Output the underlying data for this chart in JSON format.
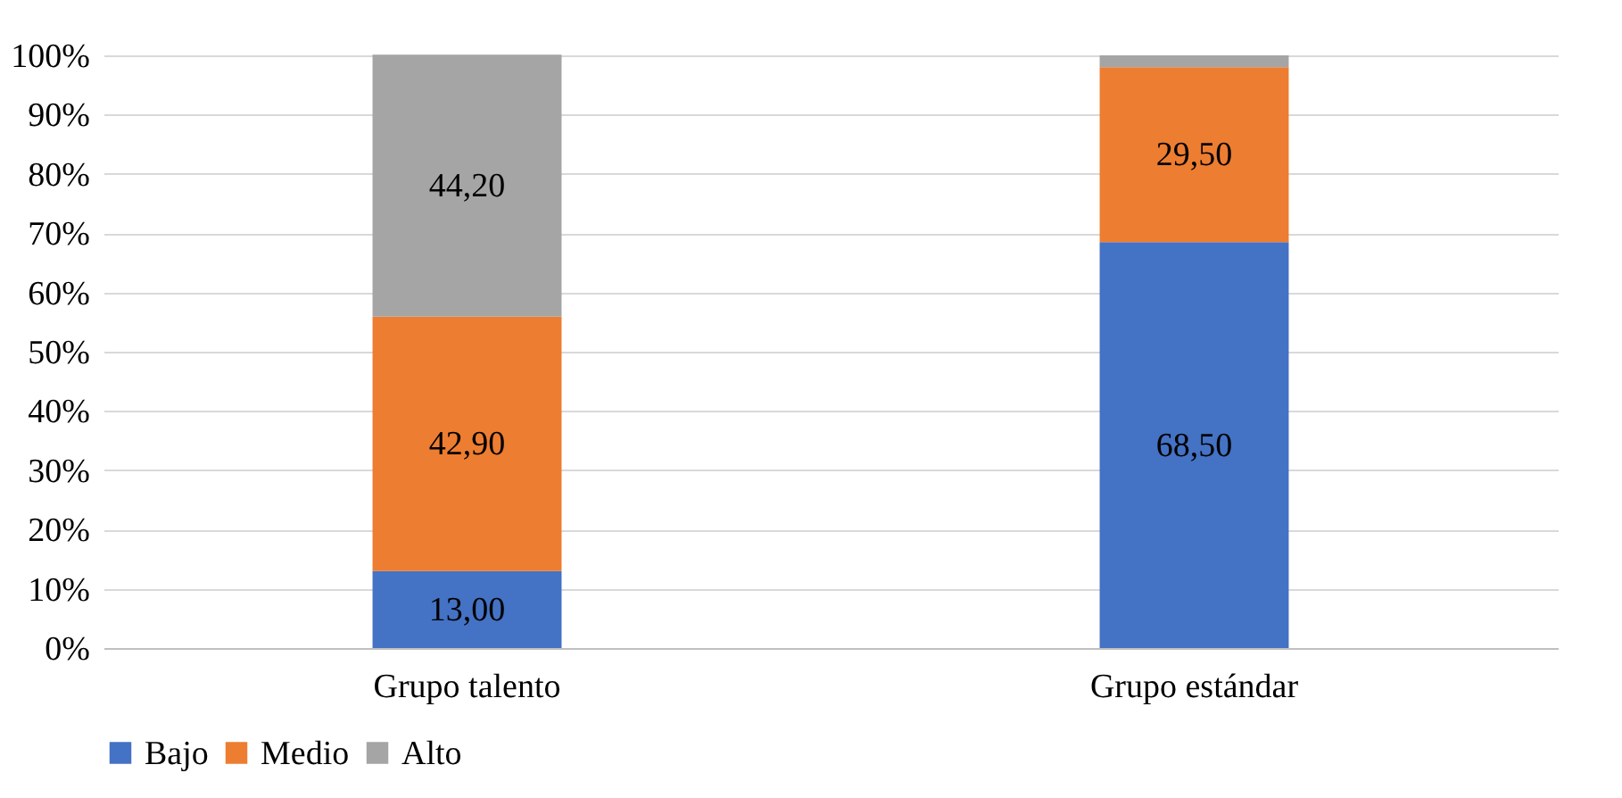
{
  "chart_data": {
    "type": "bar",
    "stacked": true,
    "categories": [
      "Grupo talento",
      "Grupo estándar"
    ],
    "series": [
      {
        "name": "Bajo",
        "color": "#4472c4",
        "values": [
          13.0,
          68.5
        ],
        "value_labels": [
          "13,00",
          "68,50"
        ]
      },
      {
        "name": "Medio",
        "color": "#ed7d31",
        "values": [
          42.9,
          29.5
        ],
        "value_labels": [
          "42,90",
          "29,50"
        ]
      },
      {
        "name": "Alto",
        "color": "#a5a5a5",
        "values": [
          44.2,
          2.0
        ],
        "value_labels": [
          "44,20",
          null
        ]
      }
    ],
    "ylim": [
      0,
      100
    ],
    "yticks": [
      {
        "value": 0,
        "label": "0%"
      },
      {
        "value": 10,
        "label": "10%"
      },
      {
        "value": 20,
        "label": "20%"
      },
      {
        "value": 30,
        "label": "30%"
      },
      {
        "value": 40,
        "label": "40%"
      },
      {
        "value": 50,
        "label": "50%"
      },
      {
        "value": 60,
        "label": "60%"
      },
      {
        "value": 70,
        "label": "70%"
      },
      {
        "value": 80,
        "label": "80%"
      },
      {
        "value": 90,
        "label": "90%"
      },
      {
        "value": 100,
        "label": "100%"
      }
    ],
    "grid": "y",
    "legend": "bottom"
  }
}
